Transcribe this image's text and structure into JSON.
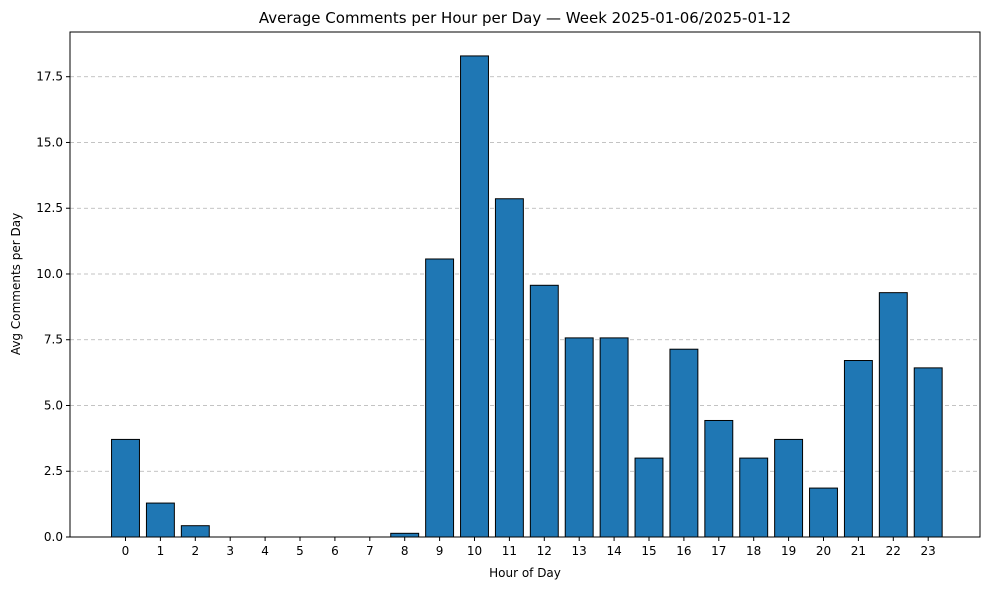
{
  "chart_data": {
    "type": "bar",
    "title": "Average Comments per Hour per Day — Week 2025-01-06/2025-01-12",
    "xlabel": "Hour of Day",
    "ylabel": "Avg Comments per Day",
    "categories": [
      "0",
      "1",
      "2",
      "3",
      "4",
      "5",
      "6",
      "7",
      "8",
      "9",
      "10",
      "11",
      "12",
      "13",
      "14",
      "15",
      "16",
      "17",
      "18",
      "19",
      "20",
      "21",
      "22",
      "23"
    ],
    "values": [
      3.71,
      1.29,
      0.43,
      0,
      0,
      0,
      0,
      0,
      0.14,
      10.57,
      18.29,
      12.86,
      9.57,
      7.57,
      7.57,
      3.0,
      7.14,
      4.43,
      3.0,
      3.71,
      1.86,
      6.71,
      9.29,
      6.43
    ],
    "ylim": [
      0,
      19.2
    ],
    "yticks": [
      0.0,
      2.5,
      5.0,
      7.5,
      10.0,
      12.5,
      15.0,
      17.5
    ],
    "ytick_labels": [
      "0.0",
      "2.5",
      "5.0",
      "7.5",
      "10.0",
      "12.5",
      "15.0",
      "17.5"
    ],
    "grid": "y-dashed",
    "legend": "none",
    "bar_color": "#1f77b4",
    "edge_color": "#000000"
  }
}
